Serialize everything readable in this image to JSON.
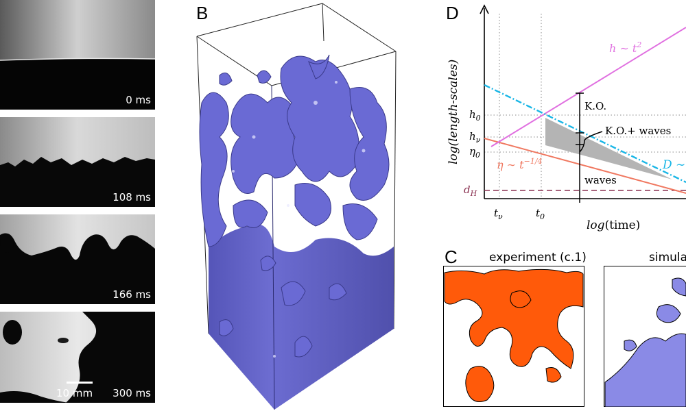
{
  "panel_a": {
    "frames": [
      {
        "time": "0 ms"
      },
      {
        "time": "108 ms"
      },
      {
        "time": "166 ms"
      },
      {
        "time": "300 ms"
      }
    ],
    "scale_bar_label": "10 mm"
  },
  "panel_b": {
    "letter": "B",
    "fluid_color": "#6f6fd6"
  },
  "panel_c": {
    "letter": "C",
    "left_title": "experiment (c.1)",
    "right_title": "simula",
    "experiment_color": "#ff5a0a",
    "simulation_color": "#8a8ae6"
  },
  "panel_d": {
    "letter": "D",
    "xlabel_prefix": "log",
    "xlabel_arg": "(time)",
    "ylabel": "log(length-scales)",
    "x_ticks": [
      {
        "base": "t",
        "sub": "ν"
      },
      {
        "base": "t",
        "sub": "0"
      }
    ],
    "y_ticks": [
      {
        "base": "h",
        "sub": "0"
      },
      {
        "base": "h",
        "sub": "ν"
      },
      {
        "base": "η",
        "sub": "0"
      },
      {
        "base": "d",
        "sub": "H"
      }
    ],
    "annotations": {
      "h_law_base": "h ∼ t",
      "h_law_exp": "2",
      "eta_law_base": "η ∼ t",
      "eta_law_exp": "−1/4",
      "d_law": "D ∼",
      "ko": "K.O.",
      "ko_waves": "K.O.+ waves",
      "waves": "waves"
    },
    "colors": {
      "h_line": "#e070e0",
      "D_line": "#19b6e6",
      "eta_line": "#f07860",
      "dH_line": "#8a3050",
      "shade": "#b4b4b4"
    }
  }
}
